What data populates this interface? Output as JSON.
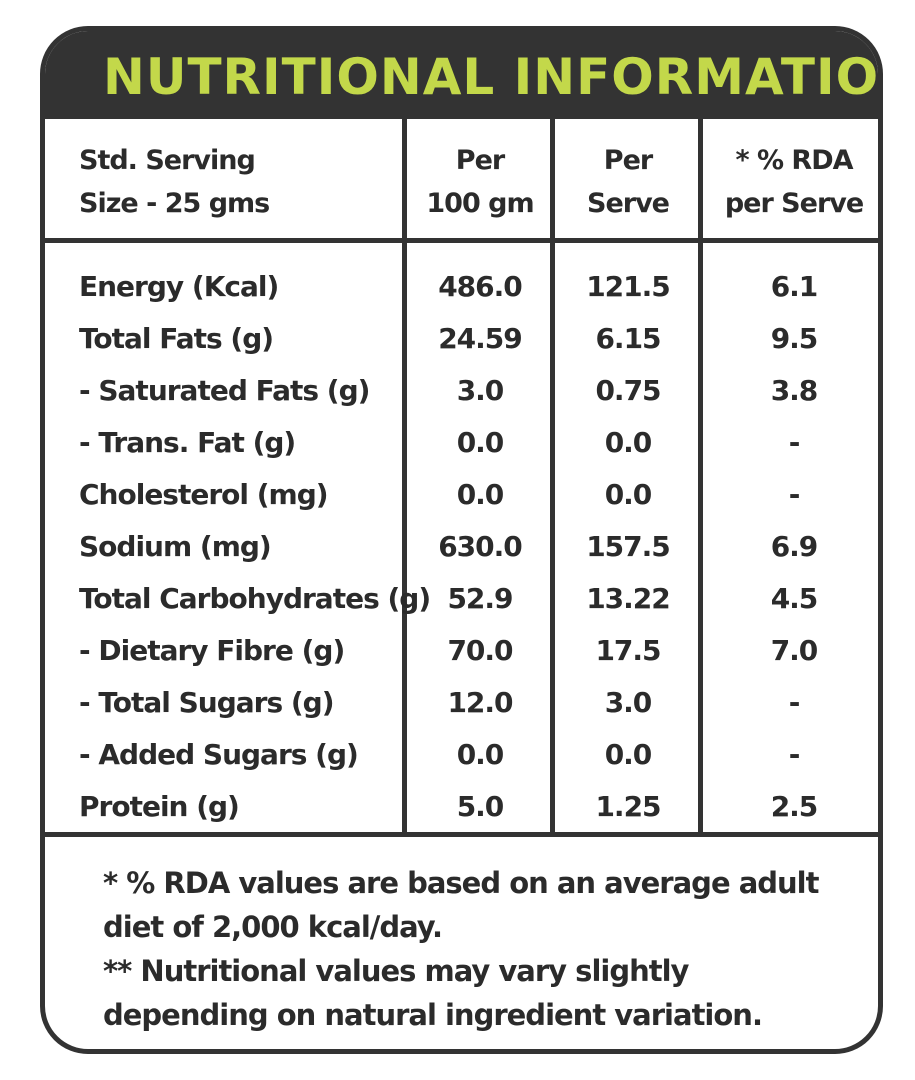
{
  "title": "NUTRITIONAL INFORMATION",
  "title_mark": "**",
  "colors": {
    "header_bg": "#333333",
    "title": "#c3d84a",
    "text": "#2b2b2b"
  },
  "columns": {
    "c0": [
      "Std. Serving",
      "Size - 25 gms"
    ],
    "c1": [
      "Per",
      "100 gm"
    ],
    "c2": [
      "Per",
      "Serve"
    ],
    "c3": [
      "* % RDA",
      "per Serve"
    ]
  },
  "rows": [
    [
      "Energy (Kcal)",
      "486.0",
      "121.5",
      "6.1"
    ],
    [
      "Total Fats (g)",
      "24.59",
      "6.15",
      "9.5"
    ],
    [
      "- Saturated Fats (g)",
      "3.0",
      "0.75",
      "3.8"
    ],
    [
      "- Trans. Fat (g)",
      "0.0",
      "0.0",
      "-"
    ],
    [
      "Cholesterol (mg)",
      "0.0",
      "0.0",
      "-"
    ],
    [
      "Sodium (mg)",
      "630.0",
      "157.5",
      "6.9"
    ],
    [
      "Total Carbohydrates (g)",
      "52.9",
      "13.22",
      "4.5"
    ],
    [
      "- Dietary Fibre (g)",
      "70.0",
      "17.5",
      "7.0"
    ],
    [
      "- Total Sugars (g)",
      "12.0",
      "3.0",
      "-"
    ],
    [
      "- Added Sugars (g)",
      "0.0",
      "0.0",
      "-"
    ],
    [
      "Protein (g)",
      "5.0",
      "1.25",
      "2.5"
    ]
  ],
  "footnotes": [
    "* % RDA values are based on an average adult diet of 2,000 kcal/day.",
    "** Nutritional values may vary slightly depending on natural ingredient variation."
  ]
}
